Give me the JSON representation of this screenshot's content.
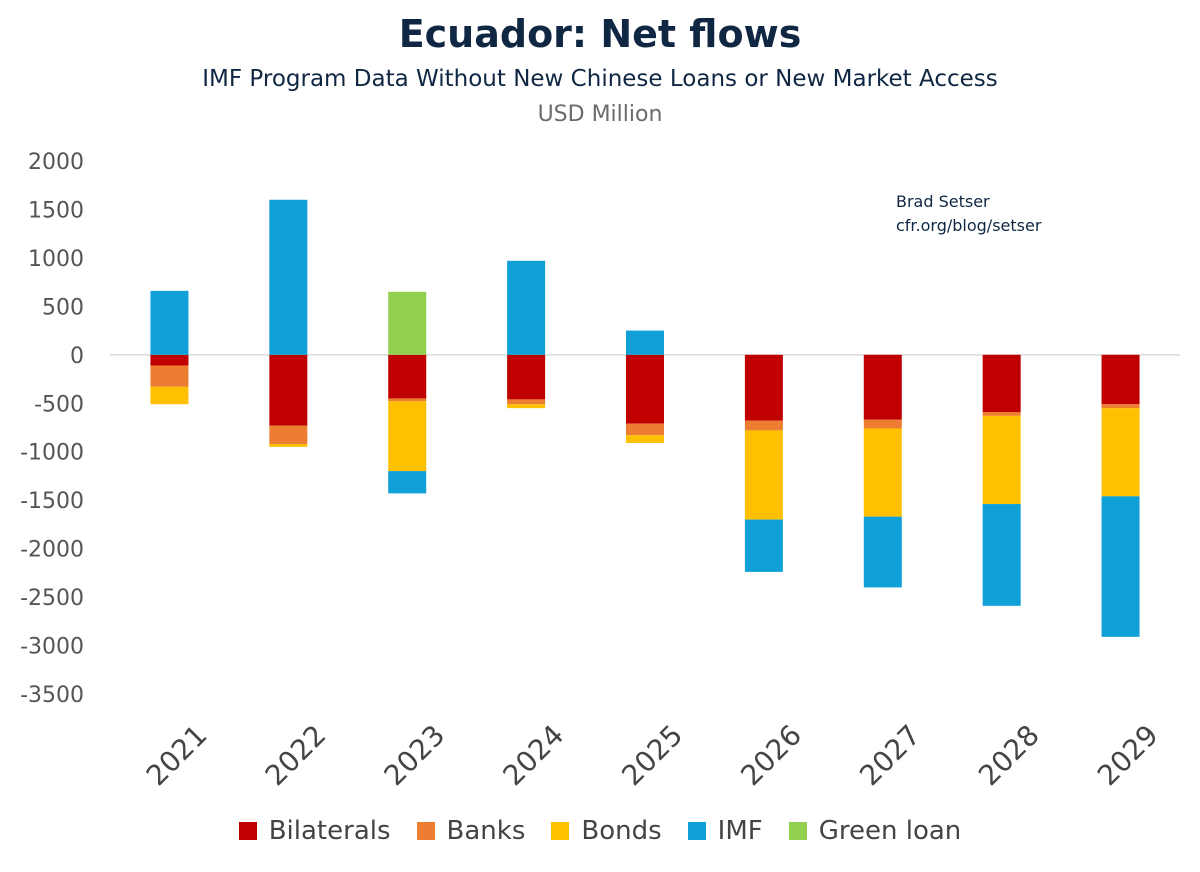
{
  "chart_data": {
    "type": "bar",
    "stacked": true,
    "title": "Ecuador: Net flows",
    "subtitle": "IMF Program Data Without New Chinese Loans or New Market Access",
    "units": "USD Million",
    "annotation": [
      "Brad Setser",
      "cfr.org/blog/setser"
    ],
    "categories": [
      "2021",
      "2022",
      "2023",
      "2024",
      "2025",
      "2026",
      "2027",
      "2028",
      "2029"
    ],
    "ylim": [
      -3500,
      2000
    ],
    "yticks": [
      2000,
      1500,
      1000,
      500,
      0,
      -500,
      -1000,
      -1500,
      -2000,
      -2500,
      -3000,
      -3500
    ],
    "grid": false,
    "legend_position": "bottom",
    "series": [
      {
        "name": "Bilaterals",
        "color": "#c00000",
        "values": [
          -110,
          -730,
          -450,
          -460,
          -710,
          -680,
          -670,
          -590,
          -510
        ]
      },
      {
        "name": "Banks",
        "color": "#ed7d31",
        "values": [
          -220,
          -190,
          -30,
          -50,
          -120,
          -100,
          -90,
          -40,
          -40
        ]
      },
      {
        "name": "Bonds",
        "color": "#ffc000",
        "values": [
          -180,
          -30,
          -720,
          -40,
          -80,
          -920,
          -910,
          -910,
          -910
        ]
      },
      {
        "name": "IMF",
        "color": "#0ea0d6",
        "values": [
          660,
          1600,
          -230,
          970,
          250,
          -540,
          -730,
          -1050,
          -1450
        ]
      },
      {
        "name": "Green loan",
        "color": "#92d050",
        "values": [
          0,
          0,
          650,
          0,
          0,
          0,
          0,
          0,
          0
        ]
      }
    ]
  }
}
